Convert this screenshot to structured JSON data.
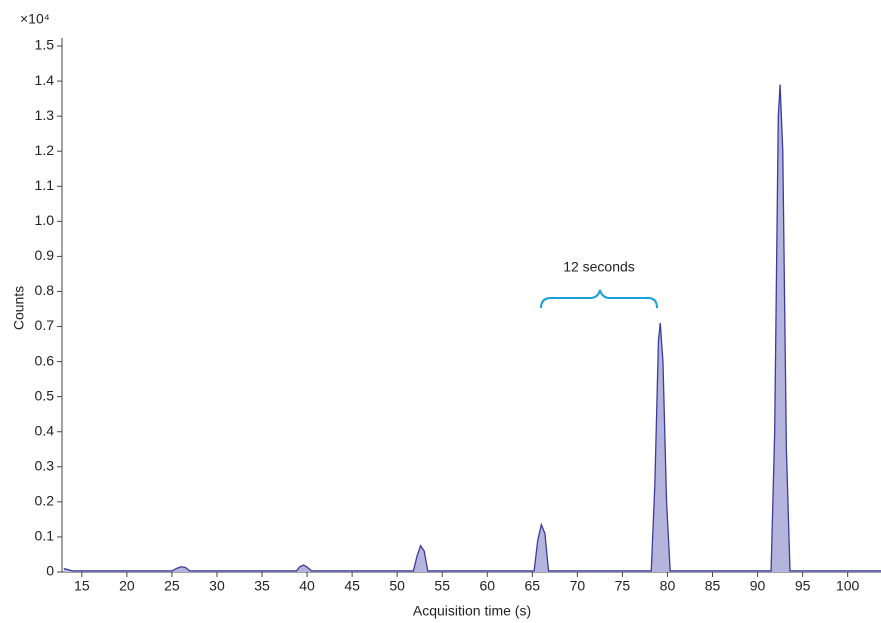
{
  "chart_data": {
    "type": "area",
    "y_scale_label": "×10⁴",
    "ylabel": "Counts",
    "xlabel": "Acquisition time (s)",
    "annotation": "12 seconds",
    "fill_color": "#b4b4dc",
    "color": "#3c3c9c",
    "x": [
      13,
      14,
      25,
      25.5,
      26,
      26.5,
      27,
      38.8,
      39.2,
      39.6,
      40,
      40.5,
      51.8,
      52.2,
      52.6,
      53,
      53.4,
      65.2,
      65.6,
      66,
      66.4,
      66.8,
      78.2,
      78.6,
      79,
      79.2,
      79.5,
      79.9,
      80.3,
      91.5,
      91.9,
      92.3,
      92.5,
      92.8,
      93.2,
      93.6,
      103.7
    ],
    "values": [
      0.01,
      0.003,
      0.003,
      0.01,
      0.015,
      0.013,
      0.003,
      0.003,
      0.015,
      0.02,
      0.014,
      0.003,
      0.003,
      0.045,
      0.075,
      0.06,
      0.003,
      0.003,
      0.09,
      0.135,
      0.11,
      0.003,
      0.003,
      0.25,
      0.66,
      0.71,
      0.6,
      0.2,
      0.003,
      0.003,
      0.4,
      1.3,
      1.39,
      1.2,
      0.35,
      0.003,
      0.003
    ],
    "xlim": [
      12.8,
      103.7
    ],
    "ylim": [
      0,
      1.52
    ],
    "xticks": [
      15,
      20,
      25,
      30,
      35,
      40,
      45,
      50,
      55,
      60,
      65,
      70,
      75,
      80,
      85,
      90,
      95,
      100
    ],
    "yticks": [
      0,
      0.1,
      0.2,
      0.3,
      0.4,
      0.5,
      0.6,
      0.7,
      0.8,
      0.9,
      {
        "value": 1,
        "label": "1.0"
      },
      1.1,
      1.2,
      1.3,
      1.4,
      1.5
    ]
  }
}
